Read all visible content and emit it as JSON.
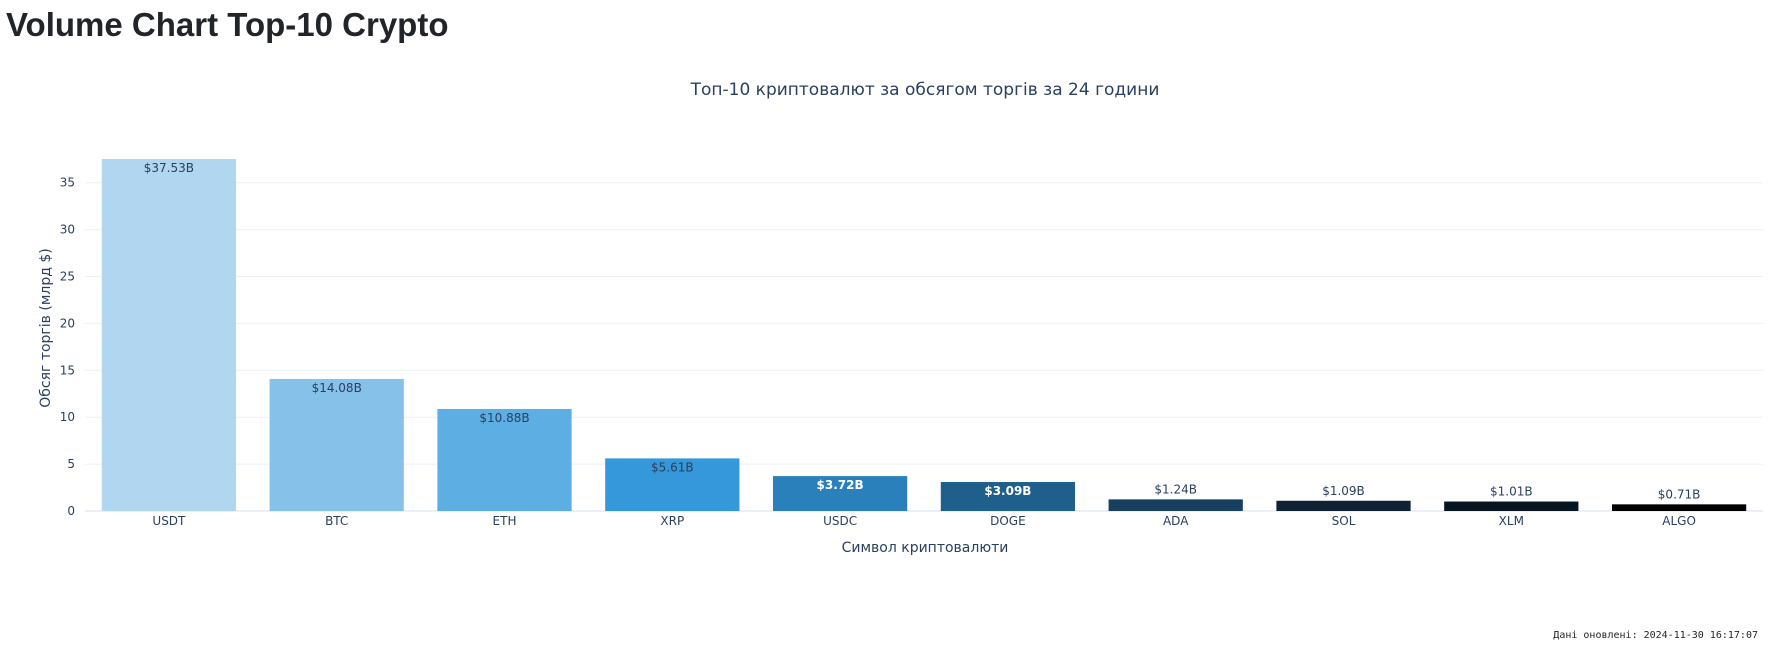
{
  "page": {
    "heading": "Volume Chart Top-10 Crypto",
    "footer": "Дані оновлені: 2024-11-30 16:17:07"
  },
  "chart_data": {
    "type": "bar",
    "title": "Топ-10 криптовалют за обсягом торгів за 24 години",
    "xlabel": "Символ криптовалюти",
    "ylabel": "Обсяг торгів (млрд $)",
    "categories": [
      "USDT",
      "BTC",
      "ETH",
      "XRP",
      "USDC",
      "DOGE",
      "ADA",
      "SOL",
      "XLM",
      "ALGO"
    ],
    "values": [
      37.53,
      14.08,
      10.88,
      5.61,
      3.72,
      3.09,
      1.24,
      1.09,
      1.01,
      0.71
    ],
    "data_labels": [
      "$37.53B",
      "$14.08B",
      "$10.88B",
      "$5.61B",
      "$3.72B",
      "$3.09B",
      "$1.24B",
      "$1.09B",
      "$1.01B",
      "$0.71B"
    ],
    "bar_colors": [
      "#b0d6f0",
      "#86c1e9",
      "#5daee3",
      "#3498db",
      "#2a80bb",
      "#1f5f8b",
      "#173f5f",
      "#0f2233",
      "#071520",
      "#000000"
    ],
    "label_colors": [
      "#2a3f5f",
      "#2a3f5f",
      "#2a3f5f",
      "#2a3f5f",
      "#ffffff",
      "#ffffff",
      "#2a3f5f",
      "#2a3f5f",
      "#2a3f5f",
      "#2a3f5f"
    ],
    "y_ticks": [
      0,
      5,
      10,
      15,
      20,
      25,
      30,
      35
    ],
    "ylim": [
      0,
      37.53
    ],
    "grid": true
  }
}
